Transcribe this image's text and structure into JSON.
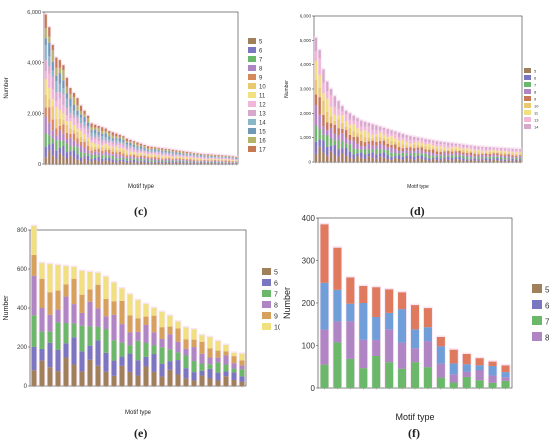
{
  "chart_data": [
    {
      "type": "bar",
      "stacked": true,
      "panel_label": "(c)",
      "xlabel": "Motif type",
      "ylabel": "Number",
      "ylim": [
        0,
        6000
      ],
      "yticks": [
        "0",
        "2,000",
        "4,000",
        "6,000"
      ],
      "legend_title": "",
      "legend_placement": "right",
      "legend": [
        "5",
        "6",
        "7",
        "8",
        "9",
        "10",
        "11",
        "12",
        "13",
        "14",
        "15",
        "16",
        "17"
      ],
      "colors": [
        "#a0805a",
        "#7b76c0",
        "#6bb86a",
        "#b085c4",
        "#d68a5c",
        "#e8c96e",
        "#f0e080",
        "#f2b6d8",
        "#d6a9cc",
        "#8ab7c8",
        "#6f9bb8",
        "#b4b46a",
        "#c57a55"
      ],
      "totals": [
        5900,
        5400,
        4700,
        4200,
        4100,
        3900,
        3400,
        3000,
        2800,
        2600,
        2300,
        2100,
        1900,
        1600,
        1550,
        1500,
        1450,
        1400,
        1300,
        1250,
        1200,
        1150,
        1100,
        1000,
        950,
        900,
        850,
        800,
        750,
        700,
        680,
        660,
        640,
        620,
        600,
        580,
        560,
        540,
        520,
        500,
        480,
        460,
        440,
        420,
        400,
        390,
        380,
        370,
        360,
        350,
        340,
        330,
        320,
        300,
        280
      ]
    },
    {
      "type": "bar",
      "stacked": true,
      "panel_label": "(d)",
      "xlabel": "Motif type",
      "ylabel": "Number",
      "ylim": [
        0,
        6000
      ],
      "yticks": [
        "0",
        "1,000",
        "2,000",
        "3,000",
        "4,000",
        "5,000",
        "6,000"
      ],
      "legend_title": "",
      "legend_placement": "right",
      "legend": [
        "5",
        "6",
        "7",
        "8",
        "9",
        "10",
        "11",
        "13",
        "14"
      ],
      "colors": [
        "#a0805a",
        "#7b76c0",
        "#6bb86a",
        "#b085c4",
        "#c57a55",
        "#e8c96e",
        "#f0e080",
        "#f2b6d8",
        "#d6a9cc"
      ],
      "totals": [
        5100,
        4600,
        3800,
        3300,
        3000,
        2700,
        2500,
        2300,
        2100,
        2000,
        1900,
        1800,
        1700,
        1650,
        1600,
        1550,
        1500,
        1450,
        1400,
        1350,
        1300,
        1250,
        1200,
        1150,
        1100,
        1060,
        1030,
        1000,
        970,
        940,
        910,
        880,
        850,
        830,
        810,
        790,
        770,
        750,
        730,
        710,
        690,
        670,
        650,
        630,
        620,
        610,
        600,
        590,
        580,
        570,
        560,
        550,
        540,
        530,
        520
      ]
    },
    {
      "type": "bar",
      "stacked": true,
      "panel_label": "(e)",
      "xlabel": "Motif type",
      "ylabel": "Number",
      "ylim": [
        0,
        800
      ],
      "yticks": [
        "0",
        "200",
        "400",
        "600",
        "800"
      ],
      "legend_title": "",
      "legend_placement": "right",
      "legend": [
        "5",
        "6",
        "7",
        "8",
        "9",
        "10"
      ],
      "colors": [
        "#a0805a",
        "#7b76c0",
        "#6bb86a",
        "#b085c4",
        "#d6a15c",
        "#f0e080"
      ],
      "totals": [
        820,
        630,
        625,
        620,
        615,
        610,
        590,
        585,
        580,
        560,
        530,
        500,
        470,
        440,
        420,
        400,
        380,
        360,
        330,
        300,
        290,
        260,
        250,
        230,
        210,
        170,
        165
      ]
    },
    {
      "type": "bar",
      "stacked": true,
      "panel_label": "(f)",
      "xlabel": "Motif type",
      "ylabel": "Number",
      "ylim": [
        0,
        400
      ],
      "yticks": [
        "0",
        "100",
        "200",
        "300",
        "400"
      ],
      "legend_title": "",
      "legend_placement": "right",
      "legend": [
        "5",
        "6",
        "7",
        "8"
      ],
      "colors": [
        "#a0805a",
        "#7b76c0",
        "#6bb86a",
        "#b085c4"
      ],
      "segment_colors": [
        "#6bb86a",
        "#b085c4",
        "#6f9ed8",
        "#e07a5f"
      ],
      "totals": [
        385,
        330,
        260,
        240,
        237,
        232,
        225,
        195,
        188,
        120,
        90,
        80,
        70,
        62,
        53
      ]
    }
  ]
}
